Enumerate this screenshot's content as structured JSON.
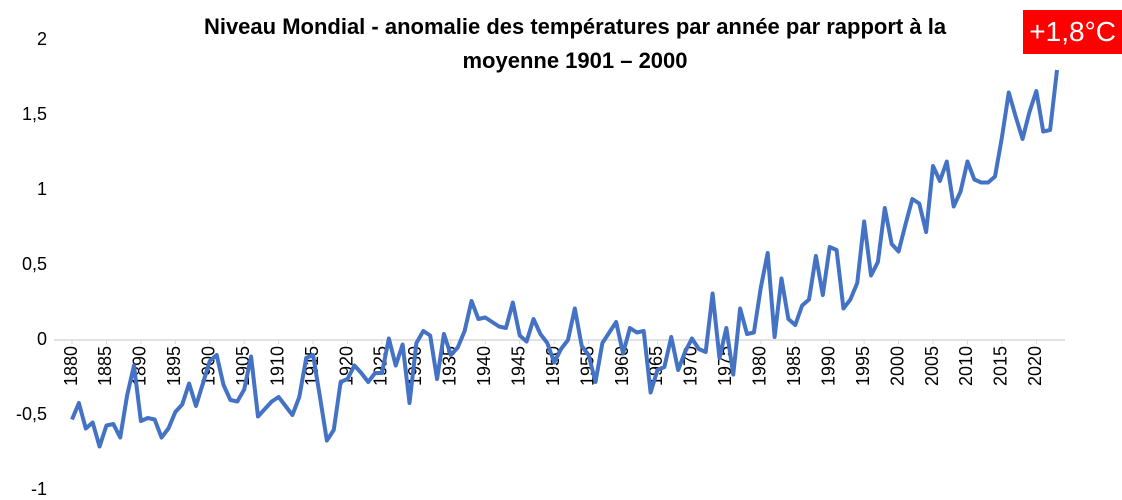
{
  "chart_data": {
    "type": "line",
    "title": "Niveau Mondial - anomalie des températures par année par rapport à la moyenne 1901 – 2000",
    "annotation": "+1,8°C",
    "x": [
      1880,
      1881,
      1882,
      1883,
      1884,
      1885,
      1886,
      1887,
      1888,
      1889,
      1890,
      1891,
      1892,
      1893,
      1894,
      1895,
      1896,
      1897,
      1898,
      1899,
      1900,
      1901,
      1902,
      1903,
      1904,
      1905,
      1906,
      1907,
      1908,
      1909,
      1910,
      1911,
      1912,
      1913,
      1914,
      1915,
      1916,
      1917,
      1918,
      1919,
      1920,
      1921,
      1922,
      1923,
      1924,
      1925,
      1926,
      1927,
      1928,
      1929,
      1930,
      1931,
      1932,
      1933,
      1934,
      1935,
      1936,
      1937,
      1938,
      1939,
      1940,
      1941,
      1942,
      1943,
      1944,
      1945,
      1946,
      1947,
      1948,
      1949,
      1950,
      1951,
      1952,
      1953,
      1954,
      1955,
      1956,
      1957,
      1958,
      1959,
      1960,
      1961,
      1962,
      1963,
      1964,
      1965,
      1966,
      1967,
      1968,
      1969,
      1970,
      1971,
      1972,
      1973,
      1974,
      1975,
      1976,
      1977,
      1978,
      1979,
      1980,
      1981,
      1982,
      1983,
      1984,
      1985,
      1986,
      1987,
      1988,
      1989,
      1990,
      1991,
      1992,
      1993,
      1994,
      1995,
      1996,
      1997,
      1998,
      1999,
      2000,
      2001,
      2002,
      2003,
      2004,
      2005,
      2006,
      2007,
      2008,
      2009,
      2010,
      2011,
      2012,
      2013,
      2014,
      2015,
      2016,
      2017,
      2018,
      2019,
      2020,
      2021,
      2022,
      2023
    ],
    "series": [
      {
        "color": "#4472c4",
        "values": [
          -0.53,
          -0.42,
          -0.59,
          -0.55,
          -0.71,
          -0.57,
          -0.56,
          -0.65,
          -0.37,
          -0.17,
          -0.54,
          -0.52,
          -0.53,
          -0.65,
          -0.59,
          -0.48,
          -0.43,
          -0.29,
          -0.44,
          -0.29,
          -0.14,
          -0.1,
          -0.3,
          -0.4,
          -0.41,
          -0.33,
          -0.11,
          -0.51,
          -0.46,
          -0.41,
          -0.38,
          -0.44,
          -0.5,
          -0.38,
          -0.12,
          -0.1,
          -0.38,
          -0.67,
          -0.6,
          -0.28,
          -0.26,
          -0.17,
          -0.22,
          -0.28,
          -0.22,
          -0.22,
          0.01,
          -0.17,
          -0.03,
          -0.42,
          -0.02,
          0.06,
          0.03,
          -0.26,
          0.04,
          -0.1,
          -0.05,
          0.06,
          0.26,
          0.14,
          0.15,
          0.12,
          0.09,
          0.08,
          0.25,
          0.03,
          -0.01,
          0.14,
          0.04,
          -0.02,
          -0.15,
          -0.06,
          0.0,
          0.21,
          -0.04,
          -0.1,
          -0.28,
          -0.02,
          0.05,
          0.12,
          -0.09,
          0.08,
          0.05,
          0.06,
          -0.35,
          -0.2,
          -0.18,
          0.02,
          -0.2,
          -0.08,
          0.01,
          -0.06,
          -0.08,
          0.31,
          -0.12,
          0.08,
          -0.23,
          0.21,
          0.04,
          0.05,
          0.35,
          0.58,
          0.02,
          0.41,
          0.14,
          0.1,
          0.23,
          0.27,
          0.56,
          0.3,
          0.62,
          0.6,
          0.21,
          0.27,
          0.38,
          0.79,
          0.43,
          0.52,
          0.88,
          0.64,
          0.59,
          0.77,
          0.94,
          0.91,
          0.72,
          1.16,
          1.06,
          1.19,
          0.89,
          0.99,
          1.19,
          1.07,
          1.05,
          1.05,
          1.09,
          1.35,
          1.65,
          1.49,
          1.34,
          1.52,
          1.66,
          1.39,
          1.4,
          1.8
        ]
      }
    ],
    "xlim": [
      1880,
      2023
    ],
    "xticks": [
      1880,
      1885,
      1890,
      1895,
      1900,
      1905,
      1910,
      1915,
      1920,
      1925,
      1930,
      1935,
      1940,
      1945,
      1950,
      1955,
      1960,
      1965,
      1970,
      1975,
      1980,
      1985,
      1990,
      1995,
      2000,
      2005,
      2010,
      2015,
      2020
    ],
    "ylim": [
      -1,
      2
    ],
    "yticks": [
      -1,
      {
        "value": -0.5,
        "label": "-0,5"
      },
      0,
      {
        "value": 0.5,
        "label": "0,5"
      },
      1,
      {
        "value": 1.5,
        "label": "1,5"
      },
      2
    ],
    "grid": false
  }
}
